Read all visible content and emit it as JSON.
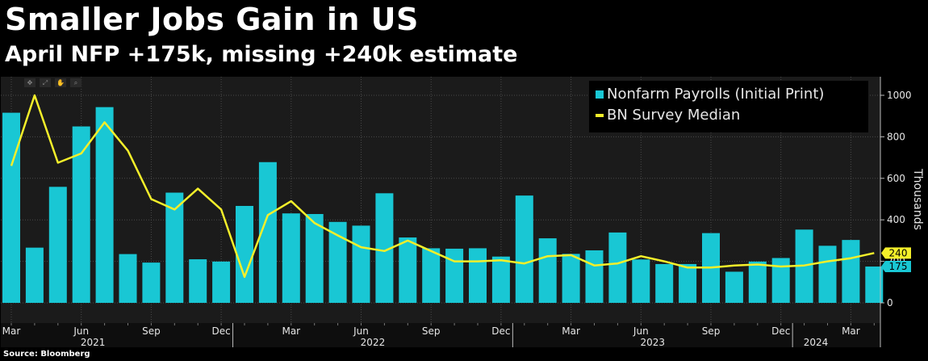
{
  "header": {
    "title": "Smaller Jobs Gain in US",
    "subtitle": "April NFP +175k, missing +240k estimate"
  },
  "toolbar": {
    "icons": [
      "move-icon",
      "zoom-area-icon",
      "pan-icon",
      "magnify-icon"
    ],
    "glyphs": [
      "✥",
      "⤢",
      "✋",
      "⌕"
    ]
  },
  "footer": {
    "source": "Source: Bloomberg"
  },
  "colors": {
    "background": "#000000",
    "plot_background": "#1b1b1b",
    "bar": "#19c7d4",
    "line": "#f4ef2a",
    "grid": "#4a4a4a",
    "text": "#e6e6e6"
  },
  "chart_data": {
    "type": "bar",
    "x": [
      "2021-03",
      "2021-04",
      "2021-05",
      "2021-06",
      "2021-07",
      "2021-08",
      "2021-09",
      "2021-10",
      "2021-11",
      "2021-12",
      "2022-01",
      "2022-02",
      "2022-03",
      "2022-04",
      "2022-05",
      "2022-06",
      "2022-07",
      "2022-08",
      "2022-09",
      "2022-10",
      "2022-11",
      "2022-12",
      "2023-01",
      "2023-02",
      "2023-03",
      "2023-04",
      "2023-05",
      "2023-06",
      "2023-07",
      "2023-08",
      "2023-09",
      "2023-10",
      "2023-11",
      "2023-12",
      "2024-01",
      "2024-02",
      "2024-03",
      "2024-04"
    ],
    "x_tick_labels": [
      {
        "x": "2021-03",
        "label": "Mar"
      },
      {
        "x": "2021-06",
        "label": "Jun"
      },
      {
        "x": "2021-09",
        "label": "Sep"
      },
      {
        "x": "2021-12",
        "label": "Dec"
      },
      {
        "x": "2022-03",
        "label": "Mar"
      },
      {
        "x": "2022-06",
        "label": "Jun"
      },
      {
        "x": "2022-09",
        "label": "Sep"
      },
      {
        "x": "2022-12",
        "label": "Dec"
      },
      {
        "x": "2023-03",
        "label": "Mar"
      },
      {
        "x": "2023-06",
        "label": "Jun"
      },
      {
        "x": "2023-09",
        "label": "Sep"
      },
      {
        "x": "2023-12",
        "label": "Dec"
      },
      {
        "x": "2024-03",
        "label": "Mar"
      }
    ],
    "year_labels": [
      {
        "x": "2021-07",
        "label": "2021"
      },
      {
        "x": "2022-07",
        "label": "2022"
      },
      {
        "x": "2023-07",
        "label": "2023"
      },
      {
        "x": "2024-02",
        "label": "2024"
      }
    ],
    "series": [
      {
        "name": "Nonfarm Payrolls (Initial Print)",
        "type": "bar",
        "values": [
          916,
          266,
          559,
          850,
          943,
          235,
          194,
          531,
          210,
          199,
          467,
          678,
          431,
          428,
          390,
          372,
          528,
          315,
          263,
          261,
          263,
          223,
          517,
          311,
          236,
          253,
          339,
          209,
          187,
          187,
          336,
          150,
          199,
          216,
          353,
          275,
          303,
          175
        ]
      },
      {
        "name": "BN Survey Median",
        "type": "line",
        "values": [
          660,
          1000,
          675,
          720,
          870,
          733,
          500,
          450,
          550,
          450,
          125,
          423,
          490,
          385,
          325,
          268,
          250,
          300,
          250,
          200,
          200,
          205,
          190,
          225,
          230,
          180,
          190,
          225,
          200,
          170,
          170,
          180,
          185,
          175,
          180,
          200,
          215,
          240
        ]
      }
    ],
    "end_labels": [
      {
        "series": "BN Survey Median",
        "value": 240,
        "text": "240"
      },
      {
        "series": "Nonfarm Payrolls (Initial Print)",
        "value": 175,
        "text": "175"
      }
    ],
    "yaxis": {
      "label": "Thousands",
      "ticks": [
        0,
        200,
        400,
        600,
        800,
        1000
      ],
      "ylim": [
        -100,
        1080
      ],
      "position": "right"
    },
    "grid": true,
    "legend": "top-right"
  }
}
